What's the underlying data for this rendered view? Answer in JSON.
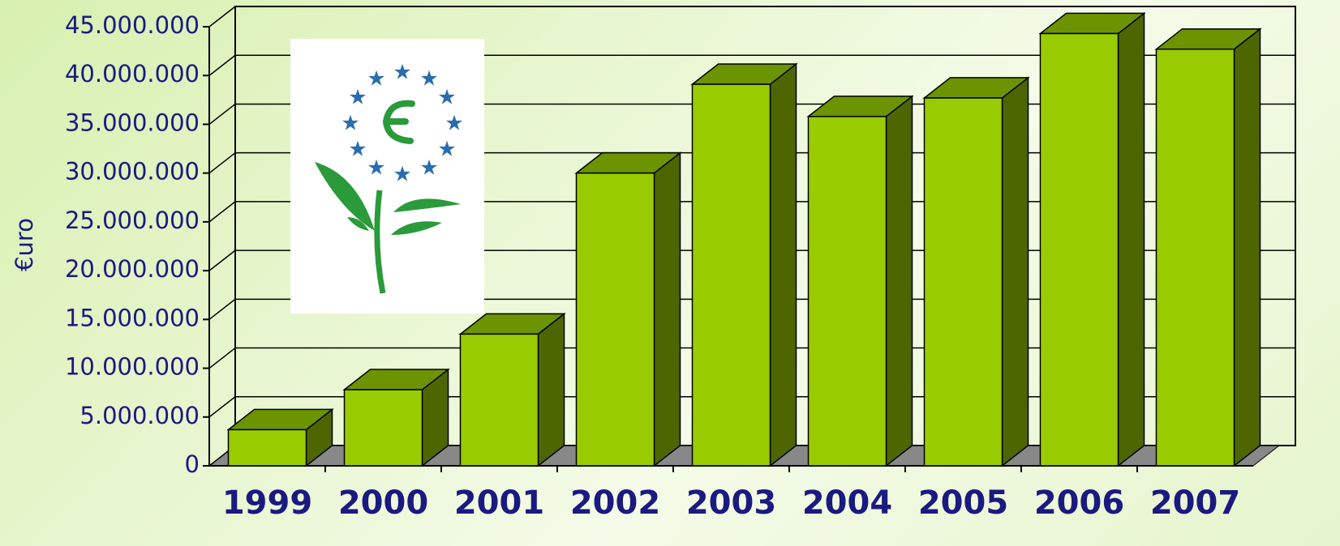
{
  "chart_data": {
    "type": "bar3d",
    "y_label": "€uro",
    "categories": [
      "1999",
      "2000",
      "2001",
      "2002",
      "2003",
      "2004",
      "2005",
      "2006",
      "2007"
    ],
    "values": [
      3700000,
      7800000,
      13500000,
      30000000,
      39100000,
      35800000,
      37700000,
      44300000,
      42700000
    ],
    "color": "#99cc00",
    "ylim": [
      0,
      45000000
    ],
    "yticks": [
      0,
      {
        "value": 5000000,
        "label": "5.000.000"
      },
      {
        "value": 10000000,
        "label": "10.000.000"
      },
      {
        "value": 15000000,
        "label": "15.000.000"
      },
      {
        "value": 20000000,
        "label": "20.000.000"
      },
      {
        "value": 25000000,
        "label": "25.000.000"
      },
      {
        "value": 30000000,
        "label": "30.000.000"
      },
      {
        "value": 35000000,
        "label": "35.000.000"
      },
      {
        "value": 40000000,
        "label": "40.000.000"
      },
      {
        "value": 45000000,
        "label": "45.000.000"
      }
    ],
    "grid": true
  }
}
